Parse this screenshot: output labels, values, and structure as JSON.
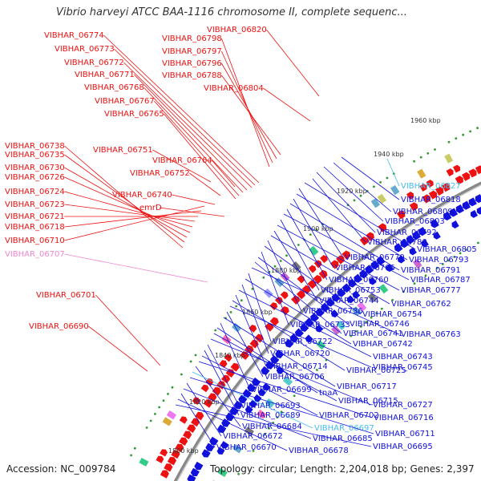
{
  "title": "Vibrio harveyi ATCC BAA-1116 chromosome II, complete sequenc...",
  "accession": "Accession: NC_009784",
  "summary": "Topology: circular; Length: 2,204,018 bp; Genes: 2,397",
  "ticks": [
    "1800 kbp",
    "1820 kbp",
    "1840 kbp",
    "1860 kbp",
    "1880 kbp",
    "1900 kbp",
    "1920 kbp",
    "1940 kbp",
    "1960 kbp"
  ],
  "colors": {
    "forward": "#ee1111",
    "reverse": "#1111dd",
    "rna": "#44bbee",
    "pseudo": "#ee88cc",
    "backbone": "#888888"
  },
  "left_labels": [
    {
      "text": "VIBHAR_06774",
      "color": "#ee1111"
    },
    {
      "text": "VIBHAR_06773",
      "color": "#ee1111"
    },
    {
      "text": "VIBHAR_06772",
      "color": "#ee1111"
    },
    {
      "text": "VIBHAR_06771",
      "color": "#ee1111"
    },
    {
      "text": "VIBHAR_06768",
      "color": "#ee1111"
    },
    {
      "text": "VIBHAR_06767",
      "color": "#ee1111"
    },
    {
      "text": "VIBHAR_06765",
      "color": "#ee1111"
    },
    {
      "text": "VIBHAR_06798",
      "color": "#ee1111"
    },
    {
      "text": "VIBHAR_06797",
      "color": "#ee1111"
    },
    {
      "text": "VIBHAR_06796",
      "color": "#ee1111"
    },
    {
      "text": "VIBHAR_06788",
      "color": "#ee1111"
    },
    {
      "text": "VIBHAR_06820",
      "color": "#ee1111"
    },
    {
      "text": "VIBHAR_06804",
      "color": "#ee1111"
    },
    {
      "text": "VIBHAR_06738",
      "color": "#ee1111"
    },
    {
      "text": "VIBHAR_06735",
      "color": "#ee1111"
    },
    {
      "text": "VIBHAR_06730",
      "color": "#ee1111"
    },
    {
      "text": "VIBHAR_06726",
      "color": "#ee1111"
    },
    {
      "text": "VIBHAR_06724",
      "color": "#ee1111"
    },
    {
      "text": "VIBHAR_06723",
      "color": "#ee1111"
    },
    {
      "text": "VIBHAR_06721",
      "color": "#ee1111"
    },
    {
      "text": "VIBHAR_06718",
      "color": "#ee1111"
    },
    {
      "text": "VIBHAR_06710",
      "color": "#ee1111"
    },
    {
      "text": "VIBHAR_06707",
      "color": "#ee88cc"
    },
    {
      "text": "VIBHAR_06701",
      "color": "#ee1111"
    },
    {
      "text": "VIBHAR_06690",
      "color": "#ee1111"
    },
    {
      "text": "VIBHAR_06751",
      "color": "#ee1111"
    },
    {
      "text": "VIBHAR_06764",
      "color": "#ee1111"
    },
    {
      "text": "VIBHAR_06752",
      "color": "#ee1111"
    },
    {
      "text": "VIBHAR_06740",
      "color": "#ee1111"
    },
    {
      "text": "emrD",
      "color": "#ee1111"
    }
  ],
  "right_labels": [
    {
      "text": "VIBHAR_06827",
      "color": "#44bbee"
    },
    {
      "text": "VIBHAR_06818",
      "color": "#1111dd"
    },
    {
      "text": "VIBHAR_06809",
      "color": "#1111dd"
    },
    {
      "text": "VIBHAR_06803",
      "color": "#1111dd"
    },
    {
      "text": "VIBHAR_06792",
      "color": "#1111dd"
    },
    {
      "text": "VIBHAR_06780",
      "color": "#1111dd"
    },
    {
      "text": "VIBHAR_06805",
      "color": "#1111dd"
    },
    {
      "text": "VIBHAR_06770",
      "color": "#1111dd"
    },
    {
      "text": "VIBHAR_06793",
      "color": "#1111dd"
    },
    {
      "text": "VIBHAR_06766",
      "color": "#1111dd"
    },
    {
      "text": "VIBHAR_06791",
      "color": "#1111dd"
    },
    {
      "text": "VIBHAR_06760",
      "color": "#1111dd"
    },
    {
      "text": "VIBHAR_06787",
      "color": "#1111dd"
    },
    {
      "text": "VIBHAR_06753",
      "color": "#1111dd"
    },
    {
      "text": "VIBHAR_06777",
      "color": "#1111dd"
    },
    {
      "text": "VIBHAR_06744",
      "color": "#1111dd"
    },
    {
      "text": "VIBHAR_06762",
      "color": "#1111dd"
    },
    {
      "text": "VIBHAR_06736",
      "color": "#1111dd"
    },
    {
      "text": "VIBHAR_06754",
      "color": "#1111dd"
    },
    {
      "text": "VIBHAR_06733",
      "color": "#1111dd"
    },
    {
      "text": "VIBHAR_06746",
      "color": "#1111dd"
    },
    {
      "text": "VIBHAR_06741",
      "color": "#1111dd"
    },
    {
      "text": "VIBHAR_06763",
      "color": "#1111dd"
    },
    {
      "text": "VIBHAR_06722",
      "color": "#1111dd"
    },
    {
      "text": "VIBHAR_06742",
      "color": "#1111dd"
    },
    {
      "text": "VIBHAR_06720",
      "color": "#1111dd"
    },
    {
      "text": "VIBHAR_06743",
      "color": "#1111dd"
    },
    {
      "text": "VIBHAR_06714",
      "color": "#1111dd"
    },
    {
      "text": "VIBHAR_06725",
      "color": "#1111dd"
    },
    {
      "text": "VIBHAR_06745",
      "color": "#1111dd"
    },
    {
      "text": "VIBHAR_06706",
      "color": "#1111dd"
    },
    {
      "text": "VIBHAR_06717",
      "color": "#1111dd"
    },
    {
      "text": "VIBHAR_06699",
      "color": "#1111dd"
    },
    {
      "text": "tnaA",
      "color": "#1111dd"
    },
    {
      "text": "VIBHAR_06715",
      "color": "#1111dd"
    },
    {
      "text": "VIBHAR_06727",
      "color": "#1111dd"
    },
    {
      "text": "VIBHAR_06693",
      "color": "#1111dd"
    },
    {
      "text": "VIBHAR_06689",
      "color": "#1111dd"
    },
    {
      "text": "VIBHAR_06702",
      "color": "#1111dd"
    },
    {
      "text": "VIBHAR_06716",
      "color": "#1111dd"
    },
    {
      "text": "VIBHAR_06684",
      "color": "#1111dd"
    },
    {
      "text": "VIBHAR_06697",
      "color": "#44bbee"
    },
    {
      "text": "VIBHAR_06711",
      "color": "#1111dd"
    },
    {
      "text": "VIBHAR_06672",
      "color": "#1111dd"
    },
    {
      "text": "VIBHAR_06685",
      "color": "#1111dd"
    },
    {
      "text": "VIBHAR_06670",
      "color": "#1111dd"
    },
    {
      "text": "VIBHAR_06678",
      "color": "#1111dd"
    },
    {
      "text": "VIBHAR_06695",
      "color": "#1111dd"
    }
  ]
}
